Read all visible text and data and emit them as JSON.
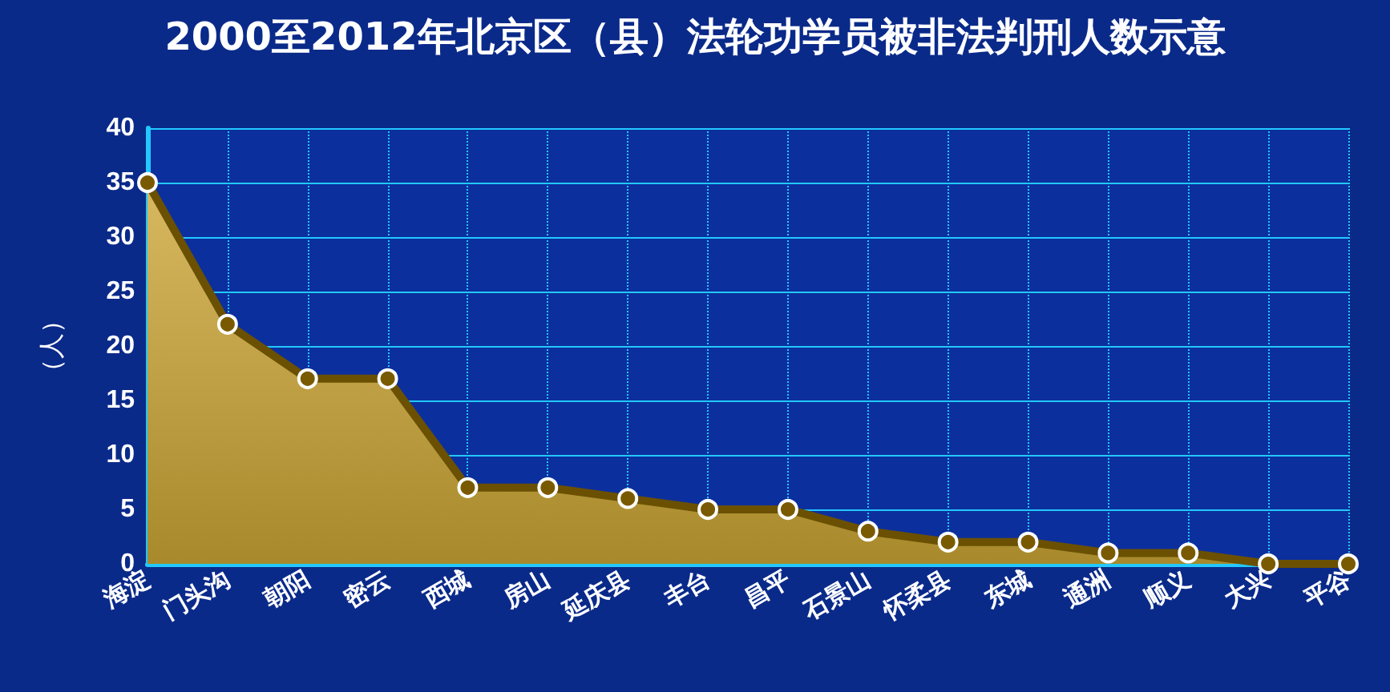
{
  "chart_data": {
    "type": "area",
    "title": "2000至2012年北京区（县）法轮功学员被非法判刑人数示意",
    "ylabel": "（人）",
    "categories": [
      "海淀",
      "门头沟",
      "朝阳",
      "密云",
      "西城",
      "房山",
      "延庆县",
      "丰台",
      "昌平",
      "石景山",
      "怀柔县",
      "东城",
      "通洲",
      "顺义",
      "大兴",
      "平谷"
    ],
    "values": [
      35,
      22,
      17,
      17,
      7,
      7,
      6,
      5,
      5,
      3,
      2,
      2,
      1,
      1,
      0,
      0
    ],
    "color": "#a88a2c",
    "ylim": [
      0,
      40
    ],
    "yticks": [
      0,
      5,
      10,
      15,
      20,
      25,
      30,
      35,
      40
    ],
    "grid": true,
    "marker": "circle"
  }
}
